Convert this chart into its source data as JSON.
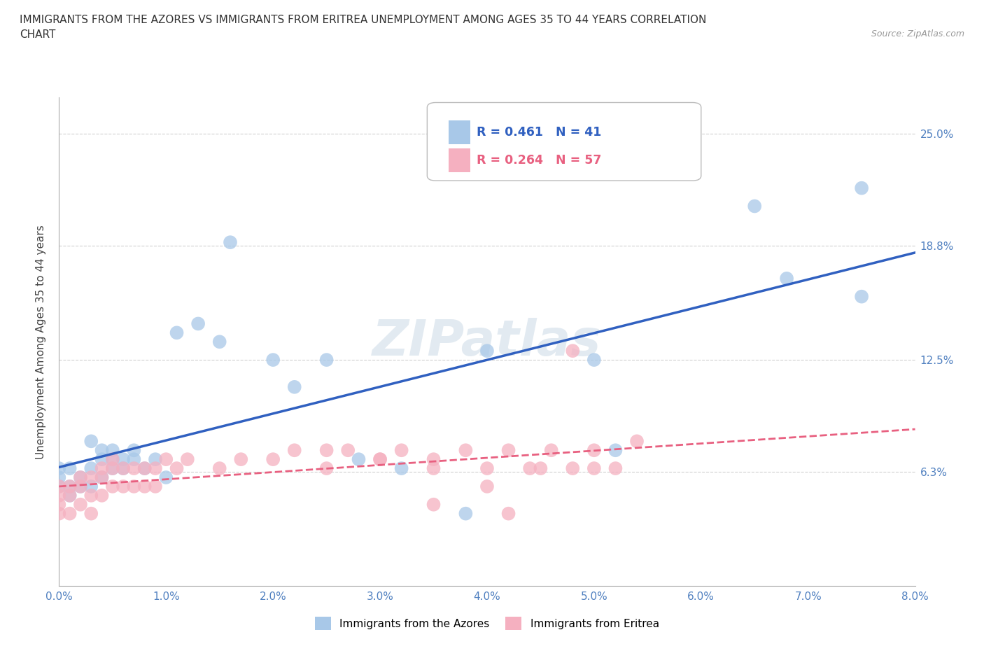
{
  "title_line1": "IMMIGRANTS FROM THE AZORES VS IMMIGRANTS FROM ERITREA UNEMPLOYMENT AMONG AGES 35 TO 44 YEARS CORRELATION",
  "title_line2": "CHART",
  "source_text": "Source: ZipAtlas.com",
  "ylabel": "Unemployment Among Ages 35 to 44 years",
  "xlim": [
    0.0,
    0.08
  ],
  "ylim": [
    0.0,
    0.27
  ],
  "xtick_labels": [
    "0.0%",
    "1.0%",
    "2.0%",
    "3.0%",
    "4.0%",
    "5.0%",
    "6.0%",
    "7.0%",
    "8.0%"
  ],
  "xtick_values": [
    0.0,
    0.01,
    0.02,
    0.03,
    0.04,
    0.05,
    0.06,
    0.07,
    0.08
  ],
  "ytick_labels": [
    "6.3%",
    "12.5%",
    "18.8%",
    "25.0%"
  ],
  "ytick_values": [
    0.063,
    0.125,
    0.188,
    0.25
  ],
  "background_color": "#ffffff",
  "grid_color": "#d0d0d0",
  "azores_color": "#a8c8e8",
  "eritrea_color": "#f5b0c0",
  "azores_line_color": "#3060c0",
  "eritrea_line_color": "#e86080",
  "legend_azores_text": "R = 0.461   N = 41",
  "legend_eritrea_text": "R = 0.264   N = 57",
  "watermark": "ZIPatlas",
  "azores_scatter_x": [
    0.0,
    0.0,
    0.0,
    0.001,
    0.001,
    0.001,
    0.002,
    0.002,
    0.003,
    0.003,
    0.003,
    0.004,
    0.004,
    0.004,
    0.005,
    0.005,
    0.005,
    0.006,
    0.006,
    0.007,
    0.007,
    0.008,
    0.009,
    0.01,
    0.011,
    0.013,
    0.015,
    0.016,
    0.02,
    0.022,
    0.025,
    0.028,
    0.032,
    0.038,
    0.04,
    0.05,
    0.052,
    0.065,
    0.068,
    0.075,
    0.075
  ],
  "azores_scatter_y": [
    0.055,
    0.06,
    0.065,
    0.05,
    0.055,
    0.065,
    0.055,
    0.06,
    0.055,
    0.065,
    0.08,
    0.06,
    0.07,
    0.075,
    0.065,
    0.07,
    0.075,
    0.065,
    0.07,
    0.07,
    0.075,
    0.065,
    0.07,
    0.06,
    0.14,
    0.145,
    0.135,
    0.19,
    0.125,
    0.11,
    0.125,
    0.07,
    0.065,
    0.04,
    0.13,
    0.125,
    0.075,
    0.21,
    0.17,
    0.16,
    0.22
  ],
  "eritrea_scatter_x": [
    0.0,
    0.0,
    0.0,
    0.0,
    0.001,
    0.001,
    0.001,
    0.002,
    0.002,
    0.002,
    0.003,
    0.003,
    0.003,
    0.004,
    0.004,
    0.004,
    0.005,
    0.005,
    0.005,
    0.006,
    0.006,
    0.007,
    0.007,
    0.008,
    0.008,
    0.009,
    0.009,
    0.01,
    0.011,
    0.012,
    0.015,
    0.017,
    0.02,
    0.022,
    0.025,
    0.027,
    0.03,
    0.032,
    0.035,
    0.038,
    0.04,
    0.042,
    0.044,
    0.046,
    0.048,
    0.05,
    0.052,
    0.054,
    0.04,
    0.045,
    0.025,
    0.03,
    0.035,
    0.042,
    0.048,
    0.035,
    0.05
  ],
  "eritrea_scatter_y": [
    0.04,
    0.045,
    0.05,
    0.055,
    0.04,
    0.05,
    0.055,
    0.045,
    0.055,
    0.06,
    0.04,
    0.05,
    0.06,
    0.05,
    0.06,
    0.065,
    0.055,
    0.065,
    0.07,
    0.055,
    0.065,
    0.055,
    0.065,
    0.055,
    0.065,
    0.055,
    0.065,
    0.07,
    0.065,
    0.07,
    0.065,
    0.07,
    0.07,
    0.075,
    0.075,
    0.075,
    0.07,
    0.075,
    0.07,
    0.075,
    0.065,
    0.075,
    0.065,
    0.075,
    0.065,
    0.075,
    0.065,
    0.08,
    0.055,
    0.065,
    0.065,
    0.07,
    0.065,
    0.04,
    0.13,
    0.045,
    0.065
  ]
}
